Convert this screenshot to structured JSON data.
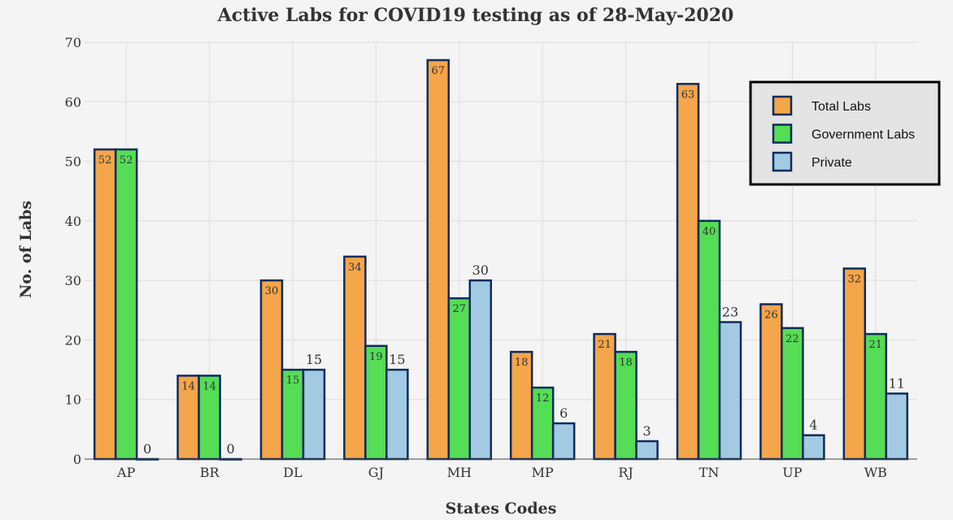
{
  "chart_data": {
    "type": "bar",
    "title": "Active Labs for COVID19 testing as of 28-May-2020",
    "xlabel": "States Codes",
    "ylabel": "No. of Labs",
    "ylim": [
      0,
      70
    ],
    "yticks": [
      0,
      10,
      20,
      30,
      40,
      50,
      60,
      70
    ],
    "grid": true,
    "legend_position": "top-right",
    "categories": [
      "AP",
      "BR",
      "DL",
      "GJ",
      "MH",
      "MP",
      "RJ",
      "TN",
      "UP",
      "WB"
    ],
    "series": [
      {
        "name": "Total Labs",
        "color": "#f5a54a",
        "label_position": "inside",
        "values": [
          52,
          14,
          30,
          34,
          67,
          18,
          21,
          63,
          26,
          32
        ]
      },
      {
        "name": "Government Labs",
        "color": "#55dd55",
        "label_position": "inside",
        "values": [
          52,
          14,
          15,
          19,
          27,
          12,
          18,
          40,
          22,
          21
        ]
      },
      {
        "name": "Private",
        "color": "#a2cbe3",
        "label_position": "outside",
        "values": [
          0,
          0,
          15,
          15,
          30,
          6,
          3,
          23,
          4,
          11
        ]
      }
    ],
    "bar_outline_color": "#0d2c5c"
  }
}
